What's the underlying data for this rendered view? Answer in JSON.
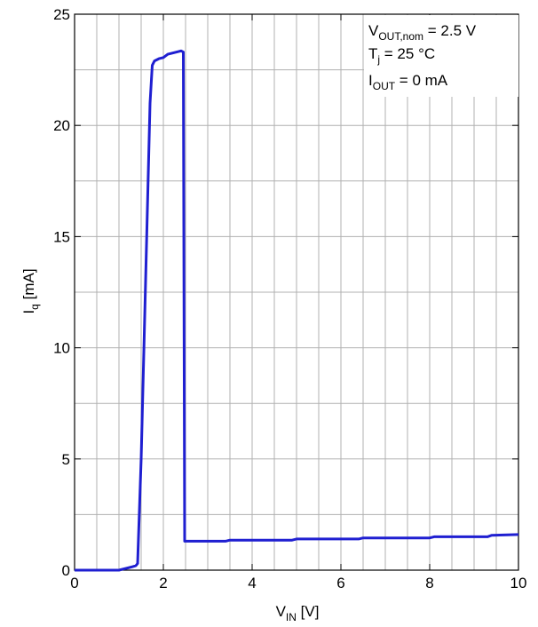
{
  "chart_data": {
    "type": "line",
    "xlabel": {
      "main": "V",
      "sub": "IN",
      "unit": " [V]"
    },
    "ylabel": {
      "main": "I",
      "sub": "q",
      "unit": " [mA]"
    },
    "xlim": [
      0,
      10
    ],
    "ylim": [
      0,
      25
    ],
    "x_ticks": [
      0,
      2,
      4,
      6,
      8,
      10
    ],
    "y_ticks": [
      0,
      5,
      10,
      15,
      20,
      25
    ],
    "x_minor_step": 0.5,
    "y_minor_step": 2.5,
    "grid": true,
    "line_color": "#1f1fd1",
    "annotations": [
      {
        "main": "V",
        "sub": "OUT,nom",
        "rest": " = 2.5 V"
      },
      {
        "main": "T",
        "sub": "j",
        "rest": " = 25 °C"
      },
      {
        "main": "I",
        "sub": "OUT",
        "rest": " = 0 mA"
      }
    ],
    "series": [
      {
        "x": [
          0,
          1.0,
          1.1,
          1.2,
          1.3,
          1.38,
          1.42,
          1.5,
          1.6,
          1.7,
          1.75,
          1.8,
          1.9,
          2.0,
          2.1,
          2.3,
          2.4,
          2.45,
          2.48,
          2.6,
          3.4,
          3.5,
          4.9,
          5.0,
          6.4,
          6.5,
          8.0,
          8.1,
          9.3,
          9.4,
          10.0
        ],
        "y": [
          0,
          0,
          0.05,
          0.1,
          0.15,
          0.2,
          0.3,
          5.0,
          13.0,
          21.0,
          22.7,
          22.9,
          23.0,
          23.05,
          23.2,
          23.3,
          23.35,
          23.3,
          1.3,
          1.3,
          1.3,
          1.35,
          1.35,
          1.4,
          1.4,
          1.45,
          1.45,
          1.5,
          1.5,
          1.57,
          1.6
        ]
      }
    ]
  }
}
